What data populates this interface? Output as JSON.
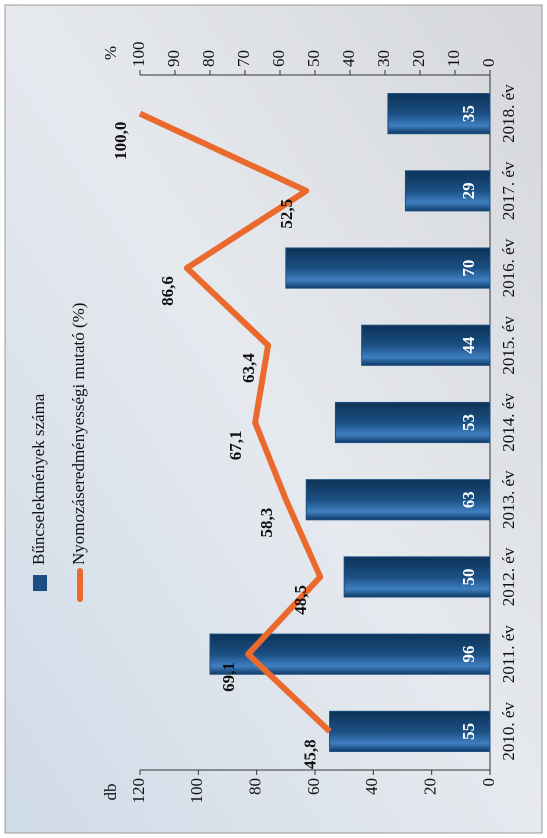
{
  "chart_data": {
    "type": "bar",
    "categories": [
      "2010. év",
      "2011. év",
      "2012. év",
      "2013. év",
      "2014. év",
      "2015. év",
      "2016. év",
      "2017. év",
      "2018. év"
    ],
    "series": [
      {
        "name": "Bűncselekmények száma",
        "type": "bar",
        "color": "#1b4f82",
        "values": [
          55,
          96,
          50,
          63,
          53,
          44,
          70,
          29,
          35
        ]
      },
      {
        "name": "Nyomozáseredményességi mutató (%)",
        "type": "line",
        "axis": "y2",
        "color": "#ea6a2e",
        "values": [
          45.8,
          69.1,
          48.5,
          58.3,
          67.1,
          63.4,
          86.6,
          52.5,
          100.0
        ],
        "value_labels": [
          "45,8",
          "69,1",
          "48,5",
          "58,3",
          "67,1",
          "63,4",
          "86,6",
          "52,5",
          "100,0"
        ]
      }
    ],
    "ylabel": "db",
    "y2label": "%",
    "ylim": [
      0,
      120
    ],
    "yticks": [
      0,
      20,
      40,
      60,
      80,
      100,
      120
    ],
    "y2lim": [
      0,
      100
    ],
    "y2ticks": [
      0,
      10,
      20,
      30,
      40,
      50,
      60,
      70,
      80,
      90,
      100
    ],
    "legend": "top"
  }
}
